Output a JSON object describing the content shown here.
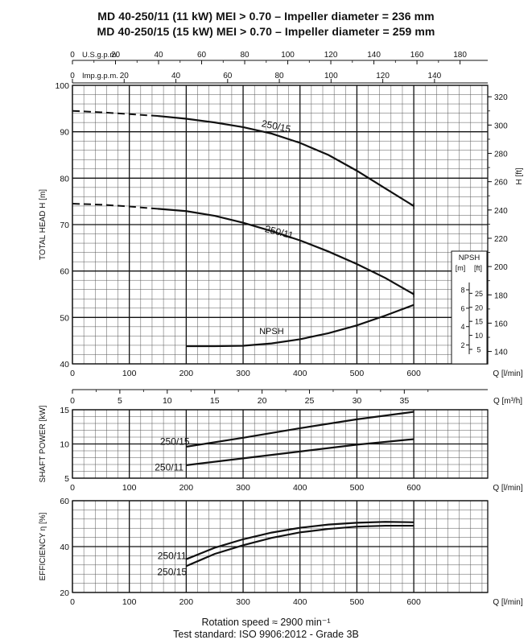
{
  "titles": {
    "line1": "MD 40-250/11 (11 kW) MEI > 0.70 – Impeller diameter = 236 mm",
    "line2": "MD 40-250/15 (15 kW) MEI > 0.70 – Impeller diameter = 259 mm"
  },
  "footer": {
    "line1": "Rotation speed ≈ 2900 min⁻¹",
    "line2": "Test standard: ISO 9906:2012 - Grade 3B"
  },
  "chart_data": [
    {
      "type": "line",
      "panel": "head",
      "top_axes": [
        {
          "label": "U.S.g.p.m.",
          "ticks": [
            0,
            20,
            40,
            60,
            80,
            100,
            120,
            140,
            160,
            180
          ],
          "factor_lmin": 3.785
        },
        {
          "label": "Imp.g.p.m.",
          "ticks": [
            0,
            20,
            40,
            60,
            80,
            100,
            120,
            140
          ],
          "factor_lmin": 4.546
        }
      ],
      "xlabel": "Q [l/min]",
      "xlim": [
        0,
        730
      ],
      "xticks": [
        0,
        100,
        200,
        300,
        400,
        500,
        600
      ],
      "ylabel": "TOTAL HEAD   H [m]",
      "ylim": [
        40,
        100
      ],
      "yticks": [
        40,
        50,
        60,
        70,
        80,
        90,
        100
      ],
      "right_axis": {
        "label": "H [ft]",
        "ticks": [
          140,
          160,
          180,
          200,
          220,
          240,
          260,
          280,
          300,
          320
        ]
      },
      "grid": true,
      "series": [
        {
          "name": "250/15",
          "dashed_until": 150,
          "x": [
            0,
            50,
            100,
            150,
            200,
            250,
            300,
            350,
            400,
            450,
            500,
            550,
            600
          ],
          "y": [
            94.5,
            94.2,
            93.8,
            93.4,
            92.8,
            92.0,
            91.0,
            89.6,
            87.6,
            85.0,
            81.6,
            77.8,
            74.0
          ]
        },
        {
          "name": "250/11",
          "dashed_until": 150,
          "x": [
            0,
            50,
            100,
            150,
            200,
            250,
            300,
            350,
            400,
            450,
            500,
            550,
            600
          ],
          "y": [
            74.5,
            74.3,
            73.9,
            73.4,
            72.9,
            71.9,
            70.4,
            68.6,
            66.6,
            64.2,
            61.5,
            58.5,
            55.0
          ]
        },
        {
          "name": "NPSH",
          "x": [
            200,
            250,
            300,
            350,
            400,
            450,
            500,
            550,
            600
          ],
          "y": [
            43.8,
            43.8,
            43.9,
            44.4,
            45.3,
            46.6,
            48.3,
            50.4,
            52.7
          ]
        }
      ],
      "npsh_box": {
        "title": "NPSH",
        "units": [
          "[m]",
          "[ft]"
        ],
        "m_ticks": [
          2,
          4,
          6,
          8
        ],
        "ft_ticks": [
          5,
          10,
          15,
          20,
          25
        ]
      }
    },
    {
      "type": "line",
      "panel": "power",
      "top_axis": {
        "label": "Q [m³/h]",
        "ticks": [
          0,
          5,
          10,
          15,
          20,
          25,
          30,
          35
        ]
      },
      "xlabel": "Q [l/min]",
      "xlim": [
        0,
        730
      ],
      "xticks": [
        0,
        100,
        200,
        300,
        400,
        500,
        600
      ],
      "ylabel": "SHAFT POWER  [kW]",
      "ylim": [
        5,
        15
      ],
      "yticks": [
        5,
        10,
        15
      ],
      "grid": true,
      "series": [
        {
          "name": "250/15",
          "x": [
            200,
            300,
            400,
            500,
            600
          ],
          "y": [
            9.6,
            10.9,
            12.3,
            13.6,
            14.7
          ]
        },
        {
          "name": "250/11",
          "x": [
            200,
            300,
            400,
            500,
            600
          ],
          "y": [
            6.9,
            7.9,
            8.9,
            9.9,
            10.7
          ]
        }
      ]
    },
    {
      "type": "line",
      "panel": "efficiency",
      "xlabel": "Q [l/min]",
      "xlim": [
        0,
        730
      ],
      "xticks": [
        0,
        100,
        200,
        300,
        400,
        500,
        600
      ],
      "ylabel": "EFFICIENCY   η [%]",
      "ylim": [
        20,
        60
      ],
      "yticks": [
        20,
        40,
        60
      ],
      "grid": true,
      "series": [
        {
          "name": "250/11",
          "x": [
            200,
            250,
            300,
            350,
            400,
            450,
            500,
            550,
            600
          ],
          "y": [
            34.5,
            39.5,
            43.2,
            46.1,
            48.2,
            49.6,
            50.4,
            50.8,
            50.6
          ]
        },
        {
          "name": "250/15",
          "x": [
            200,
            250,
            300,
            350,
            400,
            450,
            500,
            550,
            600
          ],
          "y": [
            31.5,
            36.8,
            40.6,
            43.8,
            46.2,
            47.7,
            48.7,
            49.1,
            49.1
          ]
        }
      ]
    }
  ]
}
